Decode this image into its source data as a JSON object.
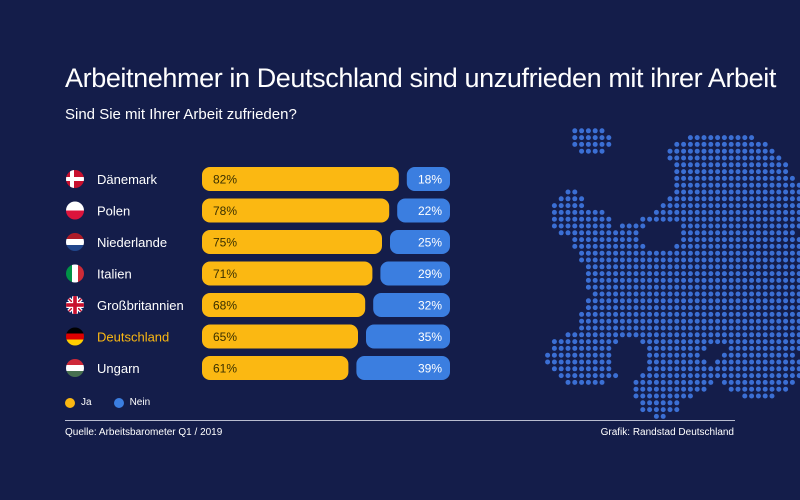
{
  "header": {
    "title": "Arbeitnehmer in Deutschland sind unzufrieden mit ihrer Arbeit",
    "subtitle": "Sind Sie mit Ihrer Arbeit zufrieden?"
  },
  "colors": {
    "background": "#141d4a",
    "ja": "#fbb812",
    "nein": "#3b7ee0",
    "highlight": "#fbb812",
    "map": "#3b6fd4"
  },
  "chart_data": {
    "type": "bar",
    "orientation": "horizontal",
    "stacked": true,
    "categories": [
      "Dänemark",
      "Polen",
      "Niederlande",
      "Italien",
      "Großbritannien",
      "Deutschland",
      "Ungarn"
    ],
    "flags": [
      "flag-dk-icon",
      "flag-pl-icon",
      "flag-nl-icon",
      "flag-it-icon",
      "flag-gb-icon",
      "flag-de-icon",
      "flag-hu-icon"
    ],
    "highlight_category": "Deutschland",
    "series": [
      {
        "name": "Ja",
        "values": [
          82,
          78,
          75,
          71,
          68,
          65,
          61
        ],
        "labels": [
          "82%",
          "78%",
          "75%",
          "71%",
          "68%",
          "65%",
          "61%"
        ]
      },
      {
        "name": "Nein",
        "values": [
          18,
          22,
          25,
          29,
          32,
          35,
          39
        ],
        "labels": [
          "18%",
          "22%",
          "25%",
          "29%",
          "32%",
          "35%",
          "39%"
        ]
      }
    ],
    "xlim": [
      0,
      100
    ],
    "legend_position": "bottom-left"
  },
  "legend": {
    "ja": "Ja",
    "nein": "Nein"
  },
  "footer": {
    "source": "Quelle: Arbeitsbarometer Q1 / 2019",
    "credit": "Grafik: Randstad Deutschland"
  }
}
